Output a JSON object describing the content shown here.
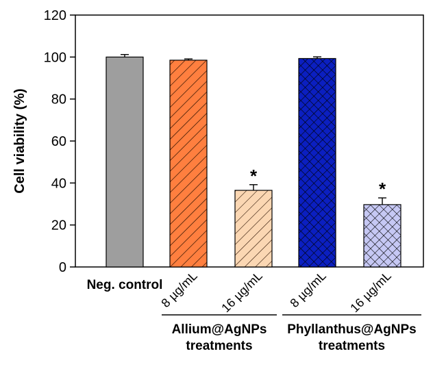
{
  "chart_data": {
    "type": "bar",
    "ylabel": "Cell viability (%)",
    "xlabel": "",
    "ylim": [
      0,
      120
    ],
    "yticks": [
      0,
      20,
      40,
      60,
      80,
      100,
      120
    ],
    "grid": false,
    "categories": [
      "Neg. control",
      "8 µg/mL",
      "16 µg/mL",
      "8 µg/mL",
      "16 µg/mL"
    ],
    "values": [
      100,
      98.5,
      36.5,
      99.3,
      29.7
    ],
    "errors": [
      1.2,
      0.6,
      2.7,
      0.8,
      3.2
    ],
    "significance": [
      "",
      "",
      "*",
      "",
      "*"
    ],
    "bar_colors": [
      "#9e9e9e",
      "#ff7f3f",
      "#fbd7b3",
      "#0b1fc0",
      "#c6c8f4"
    ],
    "bar_patterns": [
      "solid",
      "diagonal",
      "diagonal",
      "crosshatch",
      "crosshatch"
    ],
    "groups": [
      {
        "label_line1": "Allium@AgNPs",
        "label_line2": "treatments",
        "category_indices": [
          1,
          2
        ]
      },
      {
        "label_line1": "Phyllanthus@AgNPs",
        "label_line2": "treatments",
        "category_indices": [
          3,
          4
        ]
      }
    ]
  }
}
